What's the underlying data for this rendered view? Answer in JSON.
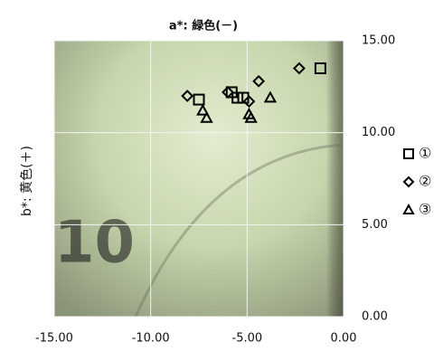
{
  "chart_data": {
    "type": "scatter",
    "title": "a*: 緑色(－)",
    "y_label": "b*: 黄色(＋)",
    "xlim": [
      -15,
      0
    ],
    "ylim": [
      0,
      15
    ],
    "xticks": [
      {
        "value": -15,
        "label": "-15.00"
      },
      {
        "value": -10,
        "label": "-10.00"
      },
      {
        "value": -5,
        "label": "-5.00"
      },
      {
        "value": 0,
        "label": "0.00"
      }
    ],
    "yticks": [
      {
        "value": 0,
        "label": "0.00"
      },
      {
        "value": 5,
        "label": "5.00"
      },
      {
        "value": 10,
        "label": "10.00"
      },
      {
        "value": 15,
        "label": "15.00"
      }
    ],
    "grid": true,
    "legend": "right",
    "series": [
      {
        "name": "①",
        "marker": "square",
        "color": "#000000",
        "x": [
          -1.2,
          -7.5,
          -5.8,
          -5.5,
          -5.2
        ],
        "values": [
          13.5,
          11.8,
          12.2,
          11.9,
          11.9
        ]
      },
      {
        "name": "②",
        "marker": "diamond",
        "color": "#000000",
        "x": [
          -2.3,
          -4.4,
          -8.1,
          -6.0,
          -4.9
        ],
        "values": [
          13.5,
          12.8,
          12.0,
          12.2,
          11.7
        ]
      },
      {
        "name": "③",
        "marker": "triangle",
        "color": "#000000",
        "x": [
          -3.8,
          -7.3,
          -7.1,
          -4.9,
          -4.8
        ],
        "values": [
          11.9,
          11.2,
          10.8,
          11.0,
          10.8
        ]
      }
    ]
  }
}
